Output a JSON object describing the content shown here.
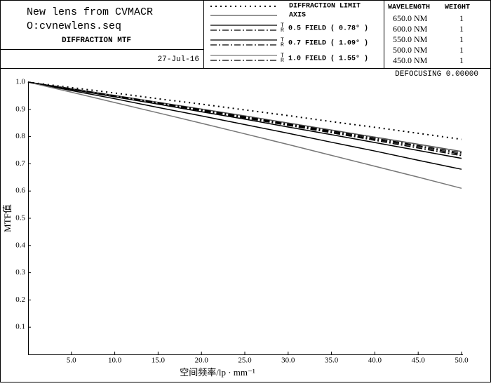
{
  "chart_data": {
    "type": "line",
    "header": {
      "title": "New lens from CVMACR",
      "file": "O:cvnewlens.seq",
      "subtitle": "DIFFRACTION MTF",
      "date": "27-Jul-16"
    },
    "defocusing": "DEFOCUSING 0.00000",
    "field_labels": [
      "0.5 FIELD ( 0.78° )",
      "0.7 FIELD ( 1.09° )",
      "1.0 FIELD ( 1.55° )"
    ],
    "wavelength_table": {
      "header": [
        "WAVELENGTH",
        "WEIGHT"
      ],
      "rows": [
        [
          "650.0 NM",
          1
        ],
        [
          "600.0 NM",
          1
        ],
        [
          "550.0 NM",
          1
        ],
        [
          "500.0 NM",
          1
        ],
        [
          "450.0 NM",
          1
        ]
      ]
    },
    "x_label": "空间频率/lp · mm⁻¹",
    "y_label": "MTF值",
    "x": [
      0,
      5,
      10,
      15,
      20,
      25,
      30,
      35,
      40,
      45,
      50
    ],
    "series": [
      {
        "name": "DIFFRACTION LIMIT",
        "color": "#000000",
        "style": "dotted",
        "values": [
          1,
          0.98,
          0.96,
          0.939,
          0.919,
          0.898,
          0.877,
          0.855,
          0.834,
          0.812,
          0.79
        ]
      },
      {
        "name": "AXIS",
        "color": "#555555",
        "style": "solid",
        "values": [
          1,
          0.976,
          0.951,
          0.926,
          0.901,
          0.876,
          0.85,
          0.824,
          0.798,
          0.772,
          0.745
        ]
      },
      {
        "name": "T",
        "color": "#000000",
        "style": "solid",
        "values": [
          1,
          0.973,
          0.946,
          0.919,
          0.891,
          0.864,
          0.835,
          0.807,
          0.778,
          0.749,
          0.72
        ]
      },
      {
        "name": "R",
        "color": "#000000",
        "style": "dashdot",
        "values": [
          1,
          0.975,
          0.95,
          0.925,
          0.899,
          0.873,
          0.847,
          0.821,
          0.794,
          0.767,
          0.74
        ]
      },
      {
        "name": "T",
        "color": "#000000",
        "style": "solid",
        "values": [
          1,
          0.969,
          0.939,
          0.907,
          0.876,
          0.844,
          0.812,
          0.779,
          0.747,
          0.713,
          0.68
        ]
      },
      {
        "name": "R",
        "color": "#000000",
        "style": "dashdot",
        "values": [
          1,
          0.975,
          0.949,
          0.923,
          0.897,
          0.871,
          0.844,
          0.817,
          0.79,
          0.763,
          0.735
        ]
      },
      {
        "name": "T",
        "color": "#777777",
        "style": "solid",
        "values": [
          1,
          0.963,
          0.925,
          0.887,
          0.849,
          0.81,
          0.771,
          0.731,
          0.691,
          0.651,
          0.61
        ]
      },
      {
        "name": "R",
        "color": "#000000",
        "style": "dashdot",
        "values": [
          1,
          0.974,
          0.948,
          0.922,
          0.895,
          0.868,
          0.841,
          0.814,
          0.786,
          0.758,
          0.73
        ]
      }
    ],
    "xlim": [
      0,
      50
    ],
    "ylim": [
      0,
      1
    ],
    "xticks": [
      {
        "value": 5,
        "label": "5.0"
      },
      {
        "value": 10,
        "label": "10.0"
      },
      {
        "value": 15,
        "label": "15.0"
      },
      {
        "value": 20,
        "label": "20.0"
      },
      {
        "value": 25,
        "label": "25.0"
      },
      {
        "value": 30,
        "label": "30.0"
      },
      {
        "value": 35,
        "label": "35.0"
      },
      {
        "value": 40,
        "label": "40.0"
      },
      {
        "value": 45,
        "label": "45.0"
      },
      {
        "value": 50,
        "label": "50.0"
      }
    ],
    "yticks": [
      0.1,
      0.2,
      0.3,
      0.4,
      0.5,
      0.6,
      0.7,
      0.8,
      0.9,
      {
        "value": 1,
        "label": "1.0"
      }
    ]
  }
}
